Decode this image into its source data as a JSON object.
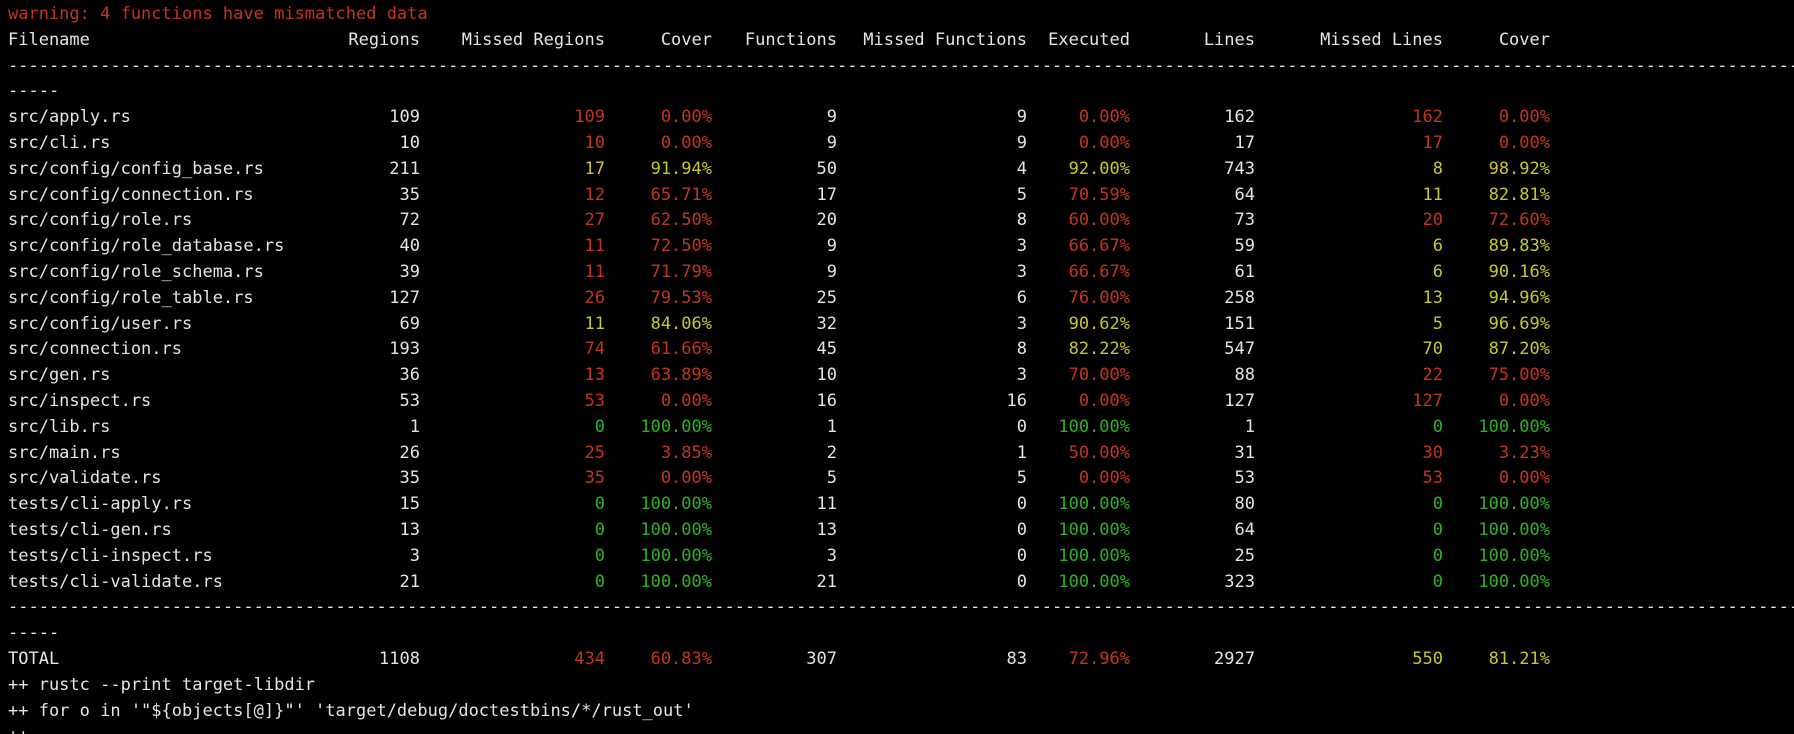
{
  "colors": {
    "bg": "#000000",
    "fg": "#e4e4e4",
    "red": "#c23621",
    "yellow": "#c9c62c",
    "green": "#2fb125"
  },
  "warning": "warning: 4 functions have mismatched data",
  "table": {
    "columns": [
      "Filename",
      "Regions",
      "Missed Regions",
      "Cover",
      "Functions",
      "Missed Functions",
      "Executed",
      "Lines",
      "Missed Lines",
      "Cover"
    ],
    "separator": {
      "full": "--------------------------------------------------------------------------------------------------------------------------------------------------------------------------------",
      "wrap": "-----"
    },
    "rows": [
      [
        [
          "src/apply.rs",
          "w"
        ],
        [
          "109",
          "w"
        ],
        [
          "109",
          "r"
        ],
        [
          "0.00%",
          "r"
        ],
        [
          "9",
          "w"
        ],
        [
          "9",
          "w"
        ],
        [
          "0.00%",
          "r"
        ],
        [
          "162",
          "w"
        ],
        [
          "162",
          "r"
        ],
        [
          "0.00%",
          "r"
        ]
      ],
      [
        [
          "src/cli.rs",
          "w"
        ],
        [
          "10",
          "w"
        ],
        [
          "10",
          "r"
        ],
        [
          "0.00%",
          "r"
        ],
        [
          "9",
          "w"
        ],
        [
          "9",
          "w"
        ],
        [
          "0.00%",
          "r"
        ],
        [
          "17",
          "w"
        ],
        [
          "17",
          "r"
        ],
        [
          "0.00%",
          "r"
        ]
      ],
      [
        [
          "src/config/config_base.rs",
          "w"
        ],
        [
          "211",
          "w"
        ],
        [
          "17",
          "y"
        ],
        [
          "91.94%",
          "y"
        ],
        [
          "50",
          "w"
        ],
        [
          "4",
          "w"
        ],
        [
          "92.00%",
          "y"
        ],
        [
          "743",
          "w"
        ],
        [
          "8",
          "y"
        ],
        [
          "98.92%",
          "y"
        ]
      ],
      [
        [
          "src/config/connection.rs",
          "w"
        ],
        [
          "35",
          "w"
        ],
        [
          "12",
          "r"
        ],
        [
          "65.71%",
          "r"
        ],
        [
          "17",
          "w"
        ],
        [
          "5",
          "w"
        ],
        [
          "70.59%",
          "r"
        ],
        [
          "64",
          "w"
        ],
        [
          "11",
          "y"
        ],
        [
          "82.81%",
          "y"
        ]
      ],
      [
        [
          "src/config/role.rs",
          "w"
        ],
        [
          "72",
          "w"
        ],
        [
          "27",
          "r"
        ],
        [
          "62.50%",
          "r"
        ],
        [
          "20",
          "w"
        ],
        [
          "8",
          "w"
        ],
        [
          "60.00%",
          "r"
        ],
        [
          "73",
          "w"
        ],
        [
          "20",
          "r"
        ],
        [
          "72.60%",
          "r"
        ]
      ],
      [
        [
          "src/config/role_database.rs",
          "w"
        ],
        [
          "40",
          "w"
        ],
        [
          "11",
          "r"
        ],
        [
          "72.50%",
          "r"
        ],
        [
          "9",
          "w"
        ],
        [
          "3",
          "w"
        ],
        [
          "66.67%",
          "r"
        ],
        [
          "59",
          "w"
        ],
        [
          "6",
          "y"
        ],
        [
          "89.83%",
          "y"
        ]
      ],
      [
        [
          "src/config/role_schema.rs",
          "w"
        ],
        [
          "39",
          "w"
        ],
        [
          "11",
          "r"
        ],
        [
          "71.79%",
          "r"
        ],
        [
          "9",
          "w"
        ],
        [
          "3",
          "w"
        ],
        [
          "66.67%",
          "r"
        ],
        [
          "61",
          "w"
        ],
        [
          "6",
          "y"
        ],
        [
          "90.16%",
          "y"
        ]
      ],
      [
        [
          "src/config/role_table.rs",
          "w"
        ],
        [
          "127",
          "w"
        ],
        [
          "26",
          "r"
        ],
        [
          "79.53%",
          "r"
        ],
        [
          "25",
          "w"
        ],
        [
          "6",
          "w"
        ],
        [
          "76.00%",
          "r"
        ],
        [
          "258",
          "w"
        ],
        [
          "13",
          "y"
        ],
        [
          "94.96%",
          "y"
        ]
      ],
      [
        [
          "src/config/user.rs",
          "w"
        ],
        [
          "69",
          "w"
        ],
        [
          "11",
          "y"
        ],
        [
          "84.06%",
          "y"
        ],
        [
          "32",
          "w"
        ],
        [
          "3",
          "w"
        ],
        [
          "90.62%",
          "y"
        ],
        [
          "151",
          "w"
        ],
        [
          "5",
          "y"
        ],
        [
          "96.69%",
          "y"
        ]
      ],
      [
        [
          "src/connection.rs",
          "w"
        ],
        [
          "193",
          "w"
        ],
        [
          "74",
          "r"
        ],
        [
          "61.66%",
          "r"
        ],
        [
          "45",
          "w"
        ],
        [
          "8",
          "w"
        ],
        [
          "82.22%",
          "y"
        ],
        [
          "547",
          "w"
        ],
        [
          "70",
          "y"
        ],
        [
          "87.20%",
          "y"
        ]
      ],
      [
        [
          "src/gen.rs",
          "w"
        ],
        [
          "36",
          "w"
        ],
        [
          "13",
          "r"
        ],
        [
          "63.89%",
          "r"
        ],
        [
          "10",
          "w"
        ],
        [
          "3",
          "w"
        ],
        [
          "70.00%",
          "r"
        ],
        [
          "88",
          "w"
        ],
        [
          "22",
          "r"
        ],
        [
          "75.00%",
          "r"
        ]
      ],
      [
        [
          "src/inspect.rs",
          "w"
        ],
        [
          "53",
          "w"
        ],
        [
          "53",
          "r"
        ],
        [
          "0.00%",
          "r"
        ],
        [
          "16",
          "w"
        ],
        [
          "16",
          "w"
        ],
        [
          "0.00%",
          "r"
        ],
        [
          "127",
          "w"
        ],
        [
          "127",
          "r"
        ],
        [
          "0.00%",
          "r"
        ]
      ],
      [
        [
          "src/lib.rs",
          "w"
        ],
        [
          "1",
          "w"
        ],
        [
          "0",
          "g"
        ],
        [
          "100.00%",
          "g"
        ],
        [
          "1",
          "w"
        ],
        [
          "0",
          "w"
        ],
        [
          "100.00%",
          "g"
        ],
        [
          "1",
          "w"
        ],
        [
          "0",
          "g"
        ],
        [
          "100.00%",
          "g"
        ]
      ],
      [
        [
          "src/main.rs",
          "w"
        ],
        [
          "26",
          "w"
        ],
        [
          "25",
          "r"
        ],
        [
          "3.85%",
          "r"
        ],
        [
          "2",
          "w"
        ],
        [
          "1",
          "w"
        ],
        [
          "50.00%",
          "r"
        ],
        [
          "31",
          "w"
        ],
        [
          "30",
          "r"
        ],
        [
          "3.23%",
          "r"
        ]
      ],
      [
        [
          "src/validate.rs",
          "w"
        ],
        [
          "35",
          "w"
        ],
        [
          "35",
          "r"
        ],
        [
          "0.00%",
          "r"
        ],
        [
          "5",
          "w"
        ],
        [
          "5",
          "w"
        ],
        [
          "0.00%",
          "r"
        ],
        [
          "53",
          "w"
        ],
        [
          "53",
          "r"
        ],
        [
          "0.00%",
          "r"
        ]
      ],
      [
        [
          "tests/cli-apply.rs",
          "w"
        ],
        [
          "15",
          "w"
        ],
        [
          "0",
          "g"
        ],
        [
          "100.00%",
          "g"
        ],
        [
          "11",
          "w"
        ],
        [
          "0",
          "w"
        ],
        [
          "100.00%",
          "g"
        ],
        [
          "80",
          "w"
        ],
        [
          "0",
          "g"
        ],
        [
          "100.00%",
          "g"
        ]
      ],
      [
        [
          "tests/cli-gen.rs",
          "w"
        ],
        [
          "13",
          "w"
        ],
        [
          "0",
          "g"
        ],
        [
          "100.00%",
          "g"
        ],
        [
          "13",
          "w"
        ],
        [
          "0",
          "w"
        ],
        [
          "100.00%",
          "g"
        ],
        [
          "64",
          "w"
        ],
        [
          "0",
          "g"
        ],
        [
          "100.00%",
          "g"
        ]
      ],
      [
        [
          "tests/cli-inspect.rs",
          "w"
        ],
        [
          "3",
          "w"
        ],
        [
          "0",
          "g"
        ],
        [
          "100.00%",
          "g"
        ],
        [
          "3",
          "w"
        ],
        [
          "0",
          "w"
        ],
        [
          "100.00%",
          "g"
        ],
        [
          "25",
          "w"
        ],
        [
          "0",
          "g"
        ],
        [
          "100.00%",
          "g"
        ]
      ],
      [
        [
          "tests/cli-validate.rs",
          "w"
        ],
        [
          "21",
          "w"
        ],
        [
          "0",
          "g"
        ],
        [
          "100.00%",
          "g"
        ],
        [
          "21",
          "w"
        ],
        [
          "0",
          "w"
        ],
        [
          "100.00%",
          "g"
        ],
        [
          "323",
          "w"
        ],
        [
          "0",
          "g"
        ],
        [
          "100.00%",
          "g"
        ]
      ]
    ],
    "total": [
      [
        "TOTAL",
        "w"
      ],
      [
        "1108",
        "w"
      ],
      [
        "434",
        "r"
      ],
      [
        "60.83%",
        "r"
      ],
      [
        "307",
        "w"
      ],
      [
        "83",
        "w"
      ],
      [
        "72.96%",
        "r"
      ],
      [
        "2927",
        "w"
      ],
      [
        "550",
        "y"
      ],
      [
        "81.21%",
        "y"
      ]
    ]
  },
  "commands": {
    "cmd1": "++ rustc --print target-libdir",
    "cmd2": "++ for o in '\"${objects[@]}\"' 'target/debug/doctestbins/*/rust_out'",
    "partial": "++"
  }
}
